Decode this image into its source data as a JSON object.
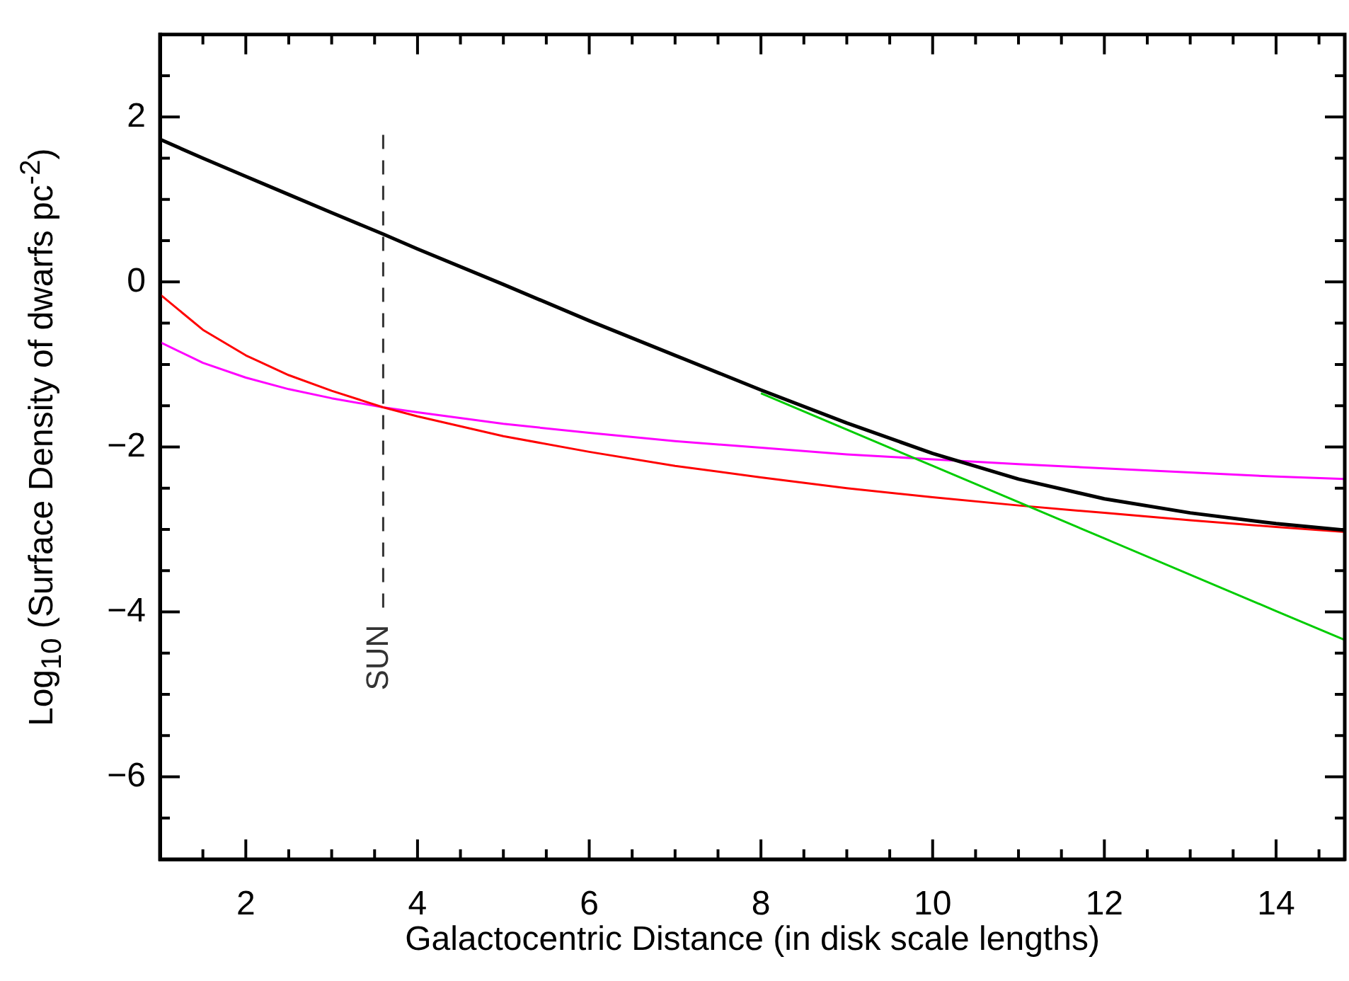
{
  "chart_data": {
    "type": "line",
    "xlabel": "Galactocentric Distance (in disk scale lengths)",
    "ylabel": "Log$_{10}$ (Surface Density of dwarfs pc$^{-2}$)",
    "xlim": [
      1,
      14.8
    ],
    "ylim": [
      -7,
      3
    ],
    "xticks": [
      {
        "value": 1.5,
        "label": null
      },
      2,
      {
        "value": 2.5,
        "label": null
      },
      {
        "value": 3,
        "label": null
      },
      {
        "value": 3.5,
        "label": null
      },
      4,
      {
        "value": 4.5,
        "label": null
      },
      {
        "value": 5,
        "label": null
      },
      {
        "value": 5.5,
        "label": null
      },
      6,
      {
        "value": 6.5,
        "label": null
      },
      {
        "value": 7,
        "label": null
      },
      {
        "value": 7.5,
        "label": null
      },
      8,
      {
        "value": 8.5,
        "label": null
      },
      {
        "value": 9,
        "label": null
      },
      {
        "value": 9.5,
        "label": null
      },
      10,
      {
        "value": 10.5,
        "label": null
      },
      {
        "value": 11,
        "label": null
      },
      {
        "value": 11.5,
        "label": null
      },
      12,
      {
        "value": 12.5,
        "label": null
      },
      {
        "value": 13,
        "label": null
      },
      {
        "value": 13.5,
        "label": null
      },
      14,
      {
        "value": 14.5,
        "label": null
      }
    ],
    "yticks": [
      {
        "value": -6.5,
        "label": null
      },
      -6,
      {
        "value": -5.5,
        "label": null
      },
      {
        "value": -5,
        "label": null
      },
      {
        "value": -4.5,
        "label": null
      },
      -4,
      {
        "value": -3.5,
        "label": null
      },
      {
        "value": -3,
        "label": null
      },
      {
        "value": -2.5,
        "label": null
      },
      -2,
      {
        "value": -1.5,
        "label": null
      },
      {
        "value": -1,
        "label": null
      },
      {
        "value": -0.5,
        "label": null
      },
      0,
      {
        "value": 0.5,
        "label": null
      },
      {
        "value": 1,
        "label": null
      },
      {
        "value": 1.5,
        "label": null
      },
      2,
      {
        "value": 2.5,
        "label": null
      }
    ],
    "grid": false,
    "legend": false,
    "marker": "none",
    "series": [
      {
        "color": "#000000",
        "x": [
          1,
          1.5,
          2,
          2.5,
          3,
          3.6,
          4,
          5,
          6,
          7,
          8,
          9,
          10,
          11,
          12,
          13,
          14,
          14.8
        ],
        "values": [
          1.73,
          1.5,
          1.28,
          1.06,
          0.84,
          0.58,
          0.4,
          -0.03,
          -0.47,
          -0.89,
          -1.31,
          -1.71,
          -2.08,
          -2.39,
          -2.63,
          -2.8,
          -2.93,
          -3.01
        ]
      },
      {
        "color": "#00cc00",
        "x": [
          8,
          10,
          12,
          14,
          14.8
        ],
        "values": [
          -1.35,
          -2.23,
          -3.11,
          -3.99,
          -4.34
        ]
      },
      {
        "color": "#ff0000",
        "x": [
          1,
          1.5,
          2,
          2.5,
          3,
          3.6,
          4,
          5,
          6,
          7,
          8,
          9,
          10,
          11,
          12,
          13,
          14,
          14.8
        ],
        "values": [
          -0.15,
          -0.58,
          -0.89,
          -1.13,
          -1.32,
          -1.52,
          -1.63,
          -1.87,
          -2.06,
          -2.23,
          -2.37,
          -2.5,
          -2.61,
          -2.71,
          -2.8,
          -2.89,
          -2.97,
          -3.03
        ]
      },
      {
        "color": "#ff00ff",
        "x": [
          1,
          1.5,
          2,
          2.5,
          3,
          3.6,
          4,
          5,
          6,
          7,
          8,
          9,
          10,
          11,
          12,
          13,
          14,
          14.8
        ],
        "values": [
          -0.73,
          -0.98,
          -1.16,
          -1.3,
          -1.41,
          -1.52,
          -1.58,
          -1.72,
          -1.83,
          -1.93,
          -2.01,
          -2.09,
          -2.15,
          -2.21,
          -2.26,
          -2.31,
          -2.36,
          -2.39
        ]
      },
      {
        "name": "SUN",
        "color": "#333333",
        "line_style": "dashed",
        "x": [
          3.6,
          3.6
        ],
        "values": [
          -3.95,
          1.84
        ]
      }
    ]
  }
}
